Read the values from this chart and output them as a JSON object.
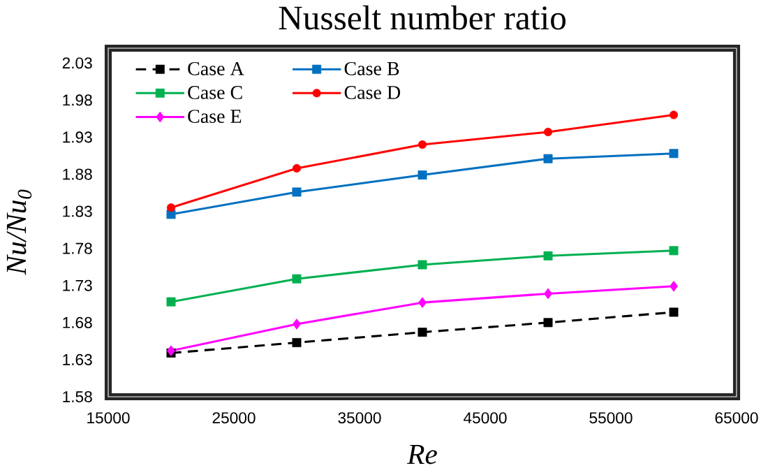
{
  "chart_data": {
    "type": "line",
    "title": "Nusselt number ratio",
    "xlabel": "Re",
    "ylabel": "Nu/Nu$_{0}$",
    "x": [
      20000,
      30000,
      40000,
      50000,
      60000
    ],
    "series": [
      {
        "name": "Case A",
        "color": "#000000",
        "marker": "square",
        "line_style": "dashed",
        "values": [
          1.639,
          1.653,
          1.667,
          1.68,
          1.694
        ]
      },
      {
        "name": "Case B",
        "color": "#0070c0",
        "marker": "square",
        "line_style": "solid",
        "values": [
          1.826,
          1.856,
          1.879,
          1.901,
          1.908
        ]
      },
      {
        "name": "Case C",
        "color": "#00b050",
        "marker": "square",
        "line_style": "solid",
        "values": [
          1.708,
          1.739,
          1.758,
          1.77,
          1.777
        ]
      },
      {
        "name": "Case D",
        "color": "#ff0000",
        "marker": "circle",
        "line_style": "solid",
        "values": [
          1.835,
          1.888,
          1.92,
          1.937,
          1.96
        ]
      },
      {
        "name": "Case E",
        "color": "#ff00ff",
        "marker": "diamond",
        "line_style": "solid",
        "values": [
          1.642,
          1.678,
          1.707,
          1.719,
          1.729
        ]
      }
    ],
    "xlim": [
      15000,
      65000
    ],
    "xticks": [
      15000,
      25000,
      35000,
      45000,
      55000,
      65000
    ],
    "ylim": [
      1.58,
      2.05
    ],
    "yticks": [
      1.58,
      1.63,
      1.68,
      1.73,
      1.78,
      1.83,
      1.88,
      1.93,
      1.98,
      2.03
    ],
    "legend": "top left"
  }
}
